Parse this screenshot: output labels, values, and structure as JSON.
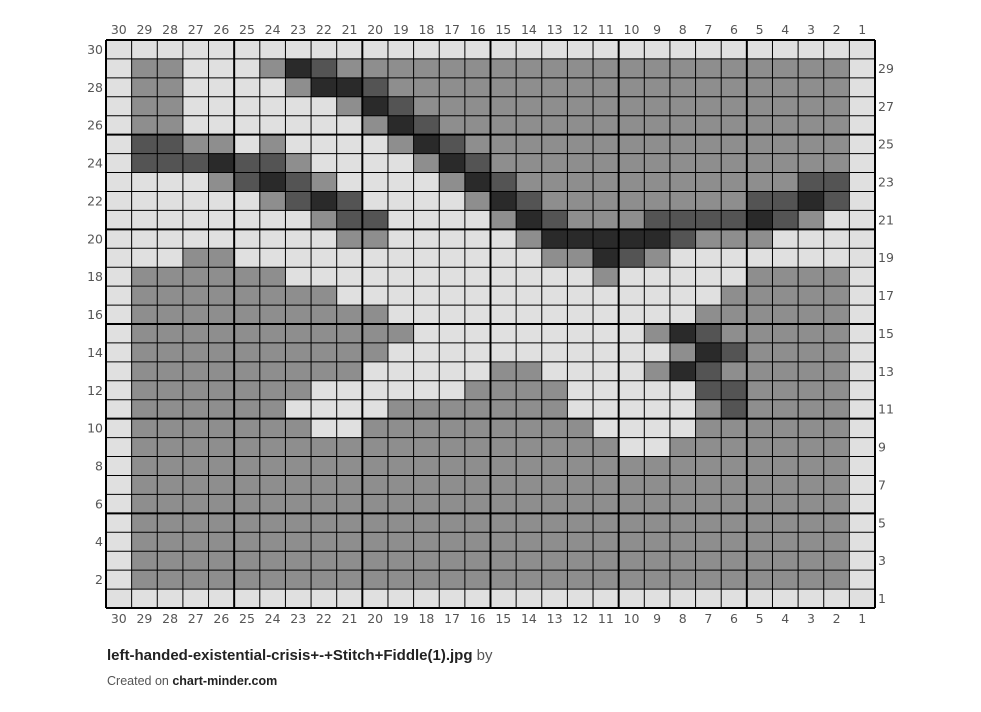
{
  "legend": {
    "L": "#e0e0e0",
    "G": "#8e8e8e",
    "D": "#545454",
    "B": "#2a2a2a"
  },
  "grid_lines_color": "#000000",
  "column_labels": [
    "30",
    "29",
    "28",
    "27",
    "26",
    "25",
    "24",
    "23",
    "22",
    "21",
    "20",
    "19",
    "18",
    "17",
    "16",
    "15",
    "14",
    "13",
    "12",
    "11",
    "10",
    "9",
    "8",
    "7",
    "6",
    "5",
    "4",
    "3",
    "2",
    "1"
  ],
  "left_row_labels": [
    "30",
    "28",
    "26",
    "24",
    "22",
    "20",
    "18",
    "16",
    "14",
    "12",
    "10",
    "8",
    "6",
    "4",
    "2"
  ],
  "right_row_labels": [
    "29",
    "27",
    "25",
    "23",
    "21",
    "19",
    "17",
    "15",
    "13",
    "11",
    "9",
    "7",
    "5",
    "3",
    "1"
  ],
  "rows": [
    "LLLLLLLLLLLLLLLLLLLLLLLLLLLLLL",
    "LGGLLLGBDGGGGGGGGGGGGGGGGGGGGL",
    "LGGLLLLGBBDGGGGGGGGGGGGGGGGGGL",
    "LGGLLLLLLGBDGGGGGGGGGGGGGGGGGL",
    "LGGLLLLLLLGBDGGGGGGGGGGGGGGGGL",
    "LDDGGLGLLLLGBDGGGGGGGGGGGGGGGL",
    "LDDDBDDGLLLLGBDGGGGGGGGGGGGGGL",
    "LLLLGDBDGLLLLGBDGGGGGGGGGGGDDL",
    "LLLLLLGDBDLLLLGBDGGGGGGGGDDBDL",
    "LLLLLLLLGDDLLLLGBDGGGDDDDBDGLL",
    "LLLLLLLLLGGLLLLLGBBBBBDGGGLLLL",
    "LLLGGLLLLLLLLLLLLGGBDGLLLLLLLL",
    "LGGGGGGLLLLLLLLLLLLGLLLLLGGGGL",
    "LGGGGGGGGLLLLLLLLLLLLLLLGGGGGL",
    "LGGGGGGGGGGLLLLLLLLLLLLGGGGGGL",
    "LGGGGGGGGGGGLLLLLLLLLGBDGGGGGL",
    "LGGGGGGGGGGLLLLLLLLLLLGBDGGGGL",
    "LGGGGGGGGGLLLLLGGLLLLGBDGGGGGL",
    "LGGGGGGGLLLLLLGGGGLLLLLDDGGGGL",
    "LGGGGGGLLLLGGGGGGGLLLLLGDGGGGL",
    "LGGGGGGGLLGGGGGGGGGLLLLGGGGGGL",
    "LGGGGGGGGGGGGGGGGGGGLLGGGGGGGL",
    "LGGGGGGGGGGGGGGGGGGGGGGGGGGGGL",
    "LGGGGGGGGGGGGGGGGGGGGGGGGGGGGL",
    "LGGGGGGGGGGGGGGGGGGGGGGGGGGGGL",
    "LGGGGGGGGGGGGGGGGGGGGGGGGGGGGL",
    "LGGGGGGGGGGGGGGGGGGGGGGGGGGGGL",
    "LGGGGGGGGGGGGGGGGGGGGGGGGGGGGL",
    "LGGGGGGGGGGGGGGGGGGGGGGGGGGGGL",
    "LLLLLLLLLLLLLLLLLLLLLLLLLLLLLL"
  ],
  "footer": {
    "filename": "left-handed-existential-crisis+-+Stitch+Fiddle(1).jpg",
    "by": "by",
    "created_on": "Created on",
    "site": "chart-minder.com"
  }
}
